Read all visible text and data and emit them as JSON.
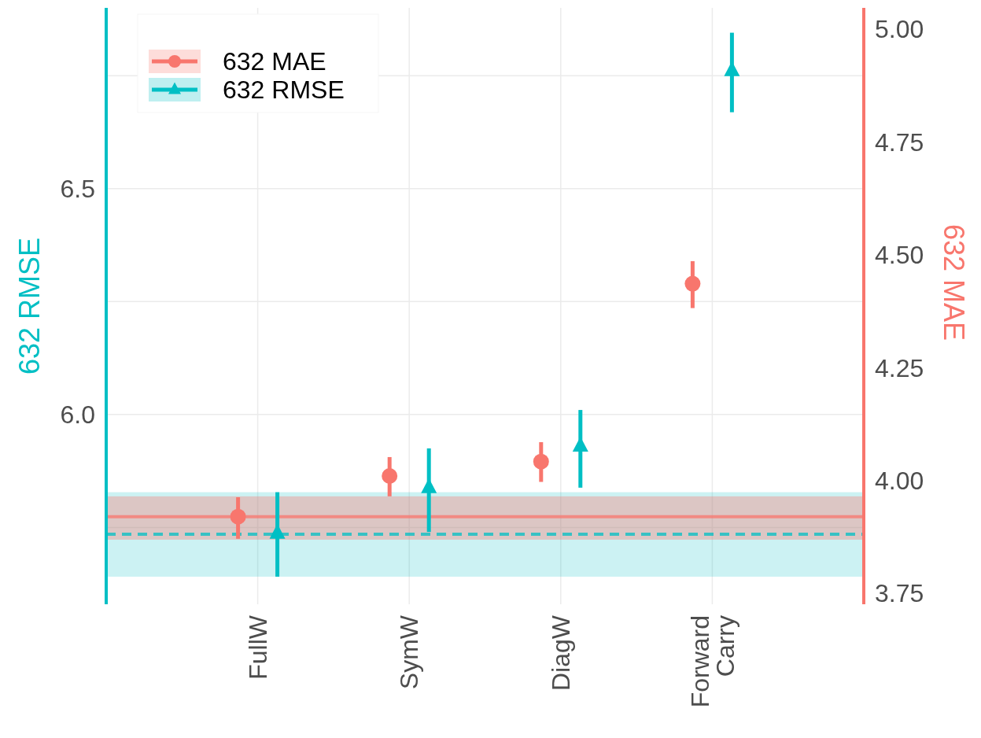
{
  "chart_data": {
    "type": "scatter",
    "categories": [
      "FullW",
      "SymW",
      "DiagW",
      "Forward\nCarry"
    ],
    "series": [
      {
        "name": "632 MAE",
        "color": "#f8766d",
        "axis": "y2",
        "marker": "circle",
        "values": [
          3.92,
          4.01,
          4.042,
          4.436
        ],
        "errors": [
          [
            3.871,
            3.963
          ],
          [
            3.965,
            4.052
          ],
          [
            3.997,
            4.085
          ],
          [
            4.382,
            4.486
          ]
        ]
      },
      {
        "name": "632 RMSE",
        "color": "#00bfc4",
        "marker": "triangle",
        "values": [
          5.737,
          5.838,
          5.93,
          6.761
        ],
        "errors": [
          [
            5.641,
            5.828
          ],
          [
            5.74,
            5.925
          ],
          [
            5.838,
            6.01
          ],
          [
            6.669,
            6.845
          ]
        ]
      }
    ],
    "ylabel": "632 RMSE",
    "y2label": "632 MAE",
    "ylim": [
      5.58,
      6.9
    ],
    "yticks": [
      {
        "value": 5.75,
        "label": null
      },
      {
        "value": 6.0,
        "label": "6.0"
      },
      {
        "value": 6.25,
        "label": null
      },
      {
        "value": 6.5,
        "label": "6.5"
      },
      {
        "value": 6.75,
        "label": null
      }
    ],
    "y2lim": [
      3.726,
      5.047
    ],
    "y2ticks": [
      {
        "value": 3.75,
        "label": "3.75"
      },
      {
        "value": 4.0,
        "label": "4.00"
      },
      {
        "value": 4.25,
        "label": "4.25"
      },
      {
        "value": 4.5,
        "label": "4.50"
      },
      {
        "value": 4.75,
        "label": "4.75"
      },
      {
        "value": 5.0,
        "label": "5.00"
      }
    ],
    "ref_lines": [
      {
        "axis": "y",
        "value": 5.735,
        "color": "#00bfc4",
        "line_style": "dashed"
      },
      {
        "axis": "y2",
        "value": 3.92,
        "color": "#f8766d",
        "line_style": "solid"
      }
    ],
    "bands": [
      {
        "axis": "y",
        "from": 5.641,
        "to": 5.828,
        "color": "#00bfc4"
      },
      {
        "axis": "y2",
        "from": 3.869,
        "to": 3.965,
        "color": "#f8766d"
      }
    ],
    "grid": true,
    "legend": "top left"
  }
}
